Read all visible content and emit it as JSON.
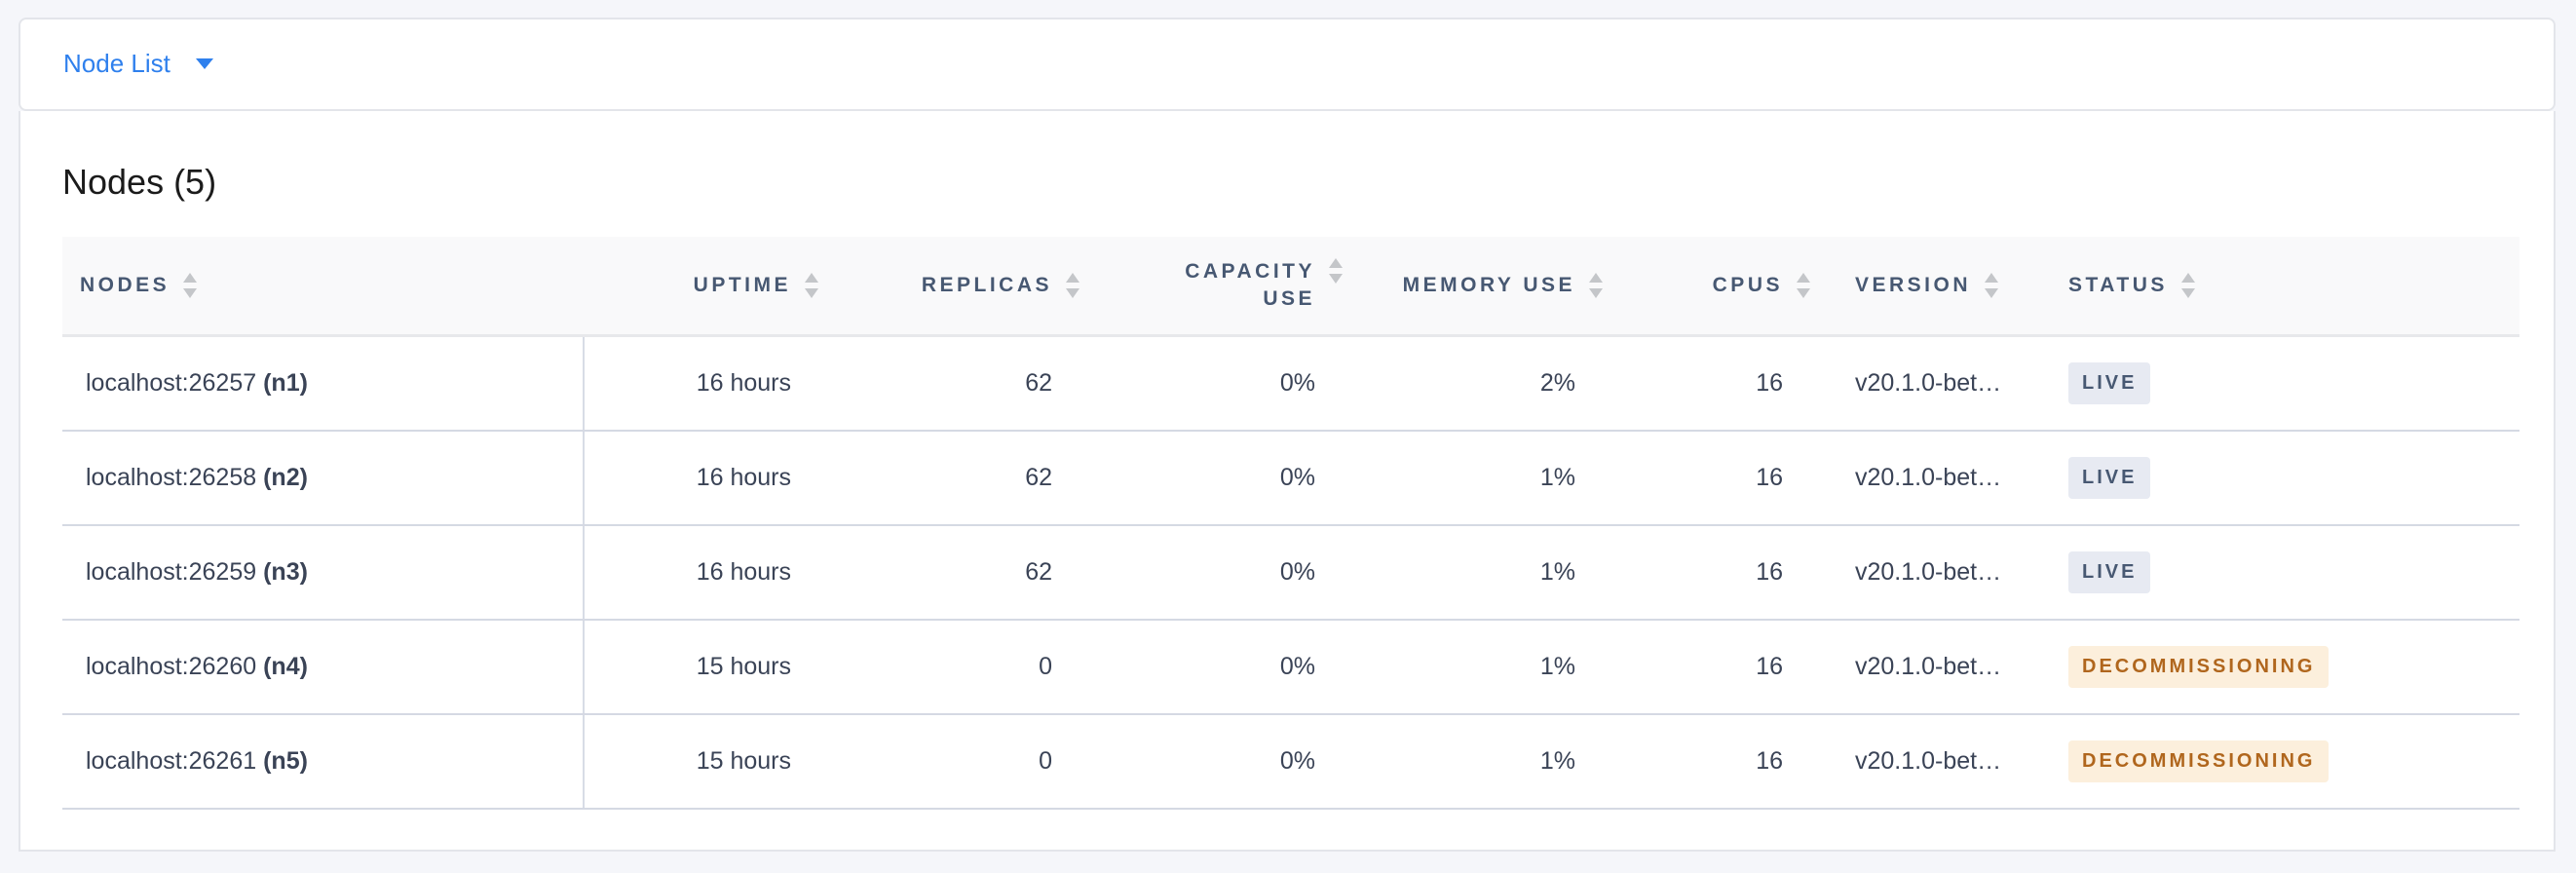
{
  "header": {
    "dropdown_label": "Node List"
  },
  "main": {
    "title": "Nodes (5)"
  },
  "table": {
    "columns": [
      "NODES",
      "UPTIME",
      "REPLICAS",
      "CAPACITY USE",
      "MEMORY USE",
      "CPUS",
      "VERSION",
      "STATUS"
    ],
    "capacity_line1": "CAPACITY",
    "capacity_line2": "USE",
    "rows": [
      {
        "address": "localhost:26257",
        "id": "(n1)",
        "uptime": "16 hours",
        "replicas": "62",
        "capacity": "0%",
        "memory": "2%",
        "cpus": "16",
        "version": "v20.1.0-bet…",
        "status": "LIVE"
      },
      {
        "address": "localhost:26258",
        "id": "(n2)",
        "uptime": "16 hours",
        "replicas": "62",
        "capacity": "0%",
        "memory": "1%",
        "cpus": "16",
        "version": "v20.1.0-bet…",
        "status": "LIVE"
      },
      {
        "address": "localhost:26259",
        "id": "(n3)",
        "uptime": "16 hours",
        "replicas": "62",
        "capacity": "0%",
        "memory": "1%",
        "cpus": "16",
        "version": "v20.1.0-bet…",
        "status": "LIVE"
      },
      {
        "address": "localhost:26260",
        "id": "(n4)",
        "uptime": "15 hours",
        "replicas": "0",
        "capacity": "0%",
        "memory": "1%",
        "cpus": "16",
        "version": "v20.1.0-bet…",
        "status": "DECOMMISSIONING"
      },
      {
        "address": "localhost:26261",
        "id": "(n5)",
        "uptime": "15 hours",
        "replicas": "0",
        "capacity": "0%",
        "memory": "1%",
        "cpus": "16",
        "version": "v20.1.0-bet…",
        "status": "DECOMMISSIONING"
      }
    ]
  },
  "colors": {
    "accent": "#2f80ed",
    "live_bg": "#e7eaf2",
    "live_fg": "#475872",
    "decom_bg": "#fcefdc",
    "decom_fg": "#b0661d"
  }
}
